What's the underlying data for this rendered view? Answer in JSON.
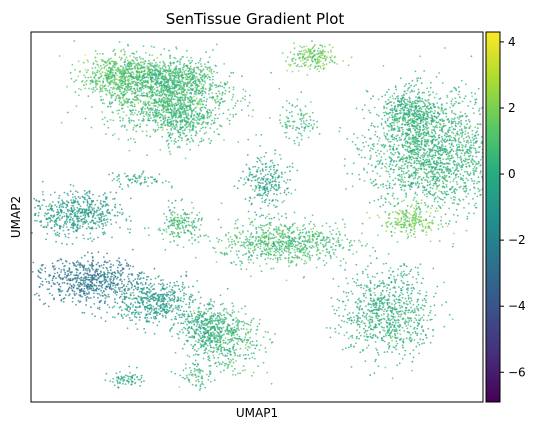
{
  "chart_data": {
    "type": "scatter",
    "title": "SenTissue Gradient Plot",
    "xlabel": "UMAP1",
    "ylabel": "UMAP2",
    "x_ticks_shown": false,
    "y_ticks_shown": false,
    "grid": false,
    "legend": "none",
    "colorbar": {
      "colormap": "viridis",
      "vmin": -6.9,
      "vmax": 4.3,
      "ticks": [
        4,
        2,
        0,
        -2,
        -4,
        -6
      ],
      "tick_labels": [
        "4",
        "2",
        "0",
        "−2",
        "−4",
        "−6"
      ]
    },
    "xlim": [
      0,
      100
    ],
    "ylim": [
      0,
      100
    ],
    "point_value_range": [
      -4,
      3
    ],
    "clusters": [
      {
        "x": 30,
        "y": 83,
        "sx": 7,
        "sy": 5,
        "n": 1400,
        "v": 0.7
      },
      {
        "x": 19,
        "y": 88,
        "sx": 4,
        "sy": 3,
        "n": 500,
        "v": 1.3
      },
      {
        "x": 29,
        "y": 88,
        "sx": 5,
        "sy": 2,
        "n": 350,
        "v": 0.6
      },
      {
        "x": 34,
        "y": 76,
        "sx": 3,
        "sy": 3,
        "n": 250,
        "v": 0.4
      },
      {
        "x": 62,
        "y": 93,
        "sx": 2.5,
        "sy": 2,
        "n": 200,
        "v": 1.6
      },
      {
        "x": 89,
        "y": 67,
        "sx": 7,
        "sy": 8,
        "n": 1800,
        "v": 0.3
      },
      {
        "x": 84,
        "y": 78,
        "sx": 3,
        "sy": 3,
        "n": 400,
        "v": 0.2
      },
      {
        "x": 84,
        "y": 49,
        "sx": 3,
        "sy": 2,
        "n": 200,
        "v": 1.8
      },
      {
        "x": 10,
        "y": 51,
        "sx": 5,
        "sy": 3,
        "n": 550,
        "v": -0.8
      },
      {
        "x": 13,
        "y": 33,
        "sx": 6,
        "sy": 3,
        "n": 650,
        "v": -2.5
      },
      {
        "x": 27,
        "y": 27,
        "sx": 5,
        "sy": 3,
        "n": 500,
        "v": -0.8
      },
      {
        "x": 43,
        "y": 17,
        "sx": 4,
        "sy": 4,
        "n": 450,
        "v": 0.6
      },
      {
        "x": 38,
        "y": 20,
        "sx": 3,
        "sy": 3,
        "n": 300,
        "v": 0.0
      },
      {
        "x": 56,
        "y": 43,
        "sx": 7,
        "sy": 3,
        "n": 750,
        "v": 0.8
      },
      {
        "x": 52,
        "y": 59,
        "sx": 2.5,
        "sy": 4,
        "n": 250,
        "v": -0.5
      },
      {
        "x": 33,
        "y": 48,
        "sx": 2.5,
        "sy": 2.5,
        "n": 180,
        "v": 0.6
      },
      {
        "x": 79,
        "y": 24,
        "sx": 5,
        "sy": 6,
        "n": 800,
        "v": 0.1
      },
      {
        "x": 37,
        "y": 7,
        "sx": 2,
        "sy": 1.5,
        "n": 70,
        "v": 0.2
      },
      {
        "x": 21,
        "y": 6,
        "sx": 2,
        "sy": 1,
        "n": 70,
        "v": -0.3
      },
      {
        "x": 24,
        "y": 60,
        "sx": 3,
        "sy": 1,
        "n": 70,
        "v": -0.2
      },
      {
        "x": 59,
        "y": 76,
        "sx": 2,
        "sy": 3,
        "n": 100,
        "v": 0.5
      }
    ]
  }
}
